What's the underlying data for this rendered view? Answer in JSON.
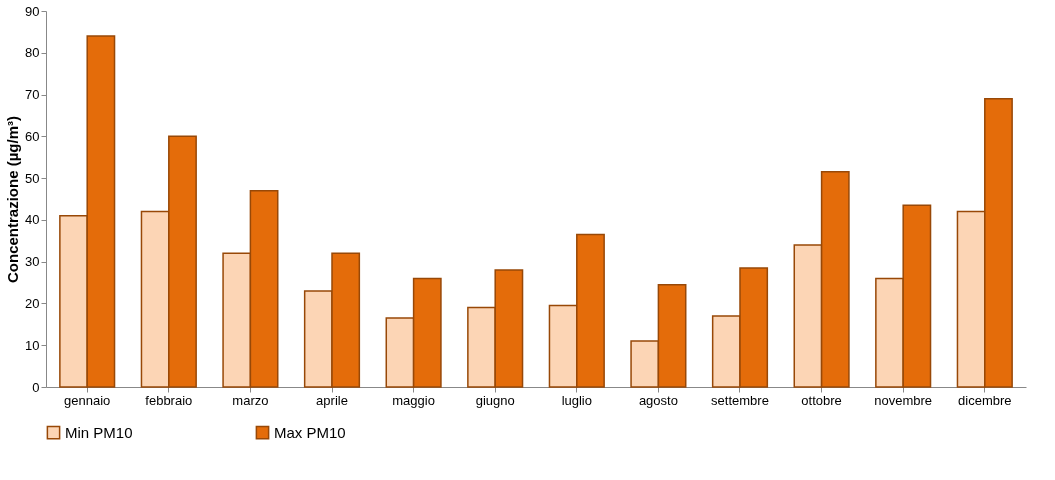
{
  "chart_data": {
    "type": "bar",
    "ylabel": "Concentrazione (µg/m³)",
    "categories": [
      "gennaio",
      "febbraio",
      "marzo",
      "aprile",
      "maggio",
      "giugno",
      "luglio",
      "agosto",
      "settembre",
      "ottobre",
      "novembre",
      "dicembre"
    ],
    "series": [
      {
        "name": "Min PM10",
        "color": "#fcd5b5",
        "values": [
          41,
          42,
          32,
          23,
          16.5,
          19,
          19.5,
          11,
          17,
          34,
          26,
          42
        ]
      },
      {
        "name": "Max PM10",
        "color": "#e46c0a",
        "values": [
          84,
          60,
          47,
          32,
          26,
          28,
          36.5,
          24.5,
          28.5,
          51.5,
          43.5,
          69
        ]
      }
    ],
    "ylim": [
      0,
      90
    ],
    "yticks": [
      0,
      10,
      20,
      30,
      40,
      50,
      60,
      70,
      80,
      90
    ],
    "grid": false,
    "legend": "bottom"
  }
}
